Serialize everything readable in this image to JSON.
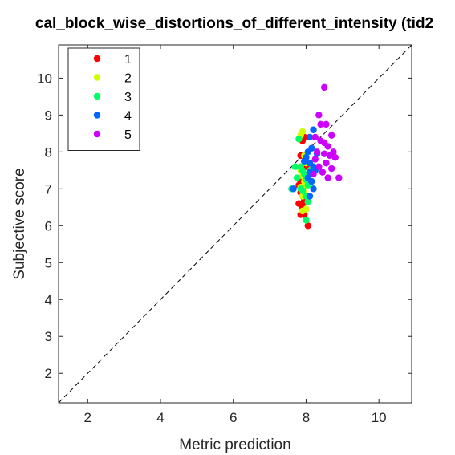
{
  "chart_data": {
    "type": "scatter",
    "title": "cal_block_wise_distortions_of_different_intensity (tid2",
    "xlabel": "Metric prediction",
    "ylabel": "Subjective score",
    "xlim": [
      1.2,
      10.9
    ],
    "ylim": [
      1.2,
      10.9
    ],
    "xticks": [
      2,
      4,
      6,
      8,
      10
    ],
    "yticks": [
      2,
      3,
      4,
      5,
      6,
      7,
      8,
      9,
      10
    ],
    "reference_line": "y = x (dashed)",
    "legend_position": "top-left",
    "series": [
      {
        "name": "1",
        "color": "#ff0000",
        "points": [
          [
            7.9,
            8.3
          ],
          [
            7.95,
            8.4
          ],
          [
            7.85,
            7.9
          ],
          [
            8.0,
            7.6
          ],
          [
            7.8,
            7.1
          ],
          [
            7.9,
            7.0
          ],
          [
            7.85,
            6.9
          ],
          [
            7.95,
            6.7
          ],
          [
            7.8,
            6.6
          ],
          [
            7.9,
            6.5
          ],
          [
            7.95,
            6.3
          ],
          [
            7.85,
            6.3
          ],
          [
            8.05,
            6.0
          ],
          [
            7.9,
            6.6
          ],
          [
            7.85,
            7.2
          ]
        ]
      },
      {
        "name": "2",
        "color": "#ccff00",
        "points": [
          [
            7.9,
            8.55
          ],
          [
            7.85,
            8.45
          ],
          [
            7.95,
            7.9
          ],
          [
            8.0,
            7.7
          ],
          [
            7.85,
            7.5
          ],
          [
            7.9,
            7.35
          ],
          [
            7.95,
            7.2
          ],
          [
            7.85,
            7.05
          ],
          [
            7.95,
            6.9
          ],
          [
            7.9,
            6.8
          ],
          [
            8.0,
            6.45
          ],
          [
            7.9,
            6.4
          ],
          [
            7.85,
            7.6
          ],
          [
            8.0,
            7.1
          ]
        ]
      },
      {
        "name": "3",
        "color": "#00ff66",
        "points": [
          [
            7.8,
            8.35
          ],
          [
            7.6,
            7.0
          ],
          [
            7.75,
            7.3
          ],
          [
            7.85,
            7.6
          ],
          [
            7.9,
            7.5
          ],
          [
            7.95,
            7.4
          ],
          [
            8.0,
            7.25
          ],
          [
            8.05,
            7.1
          ],
          [
            7.9,
            6.95
          ],
          [
            8.0,
            6.8
          ],
          [
            8.05,
            6.65
          ],
          [
            8.0,
            6.15
          ],
          [
            7.85,
            7.0
          ],
          [
            8.1,
            7.5
          ],
          [
            7.7,
            7.6
          ]
        ]
      },
      {
        "name": "4",
        "color": "#0066ff",
        "points": [
          [
            8.2,
            8.6
          ],
          [
            8.1,
            8.4
          ],
          [
            8.15,
            8.1
          ],
          [
            8.05,
            8.0
          ],
          [
            8.0,
            7.85
          ],
          [
            7.95,
            7.75
          ],
          [
            8.1,
            7.7
          ],
          [
            8.2,
            7.6
          ],
          [
            8.1,
            7.45
          ],
          [
            8.05,
            7.3
          ],
          [
            8.15,
            7.2
          ],
          [
            7.65,
            7.0
          ],
          [
            8.1,
            6.8
          ],
          [
            8.2,
            7.0
          ],
          [
            8.25,
            7.5
          ],
          [
            8.3,
            7.95
          ]
        ]
      },
      {
        "name": "5",
        "color": "#cc00ff",
        "points": [
          [
            8.5,
            9.75
          ],
          [
            8.35,
            9.0
          ],
          [
            8.55,
            8.75
          ],
          [
            8.4,
            8.75
          ],
          [
            8.25,
            8.4
          ],
          [
            8.4,
            8.3
          ],
          [
            8.5,
            8.25
          ],
          [
            8.7,
            8.45
          ],
          [
            8.6,
            8.15
          ],
          [
            8.3,
            8.0
          ],
          [
            8.5,
            7.95
          ],
          [
            8.65,
            7.9
          ],
          [
            8.8,
            7.85
          ],
          [
            8.55,
            7.7
          ],
          [
            8.7,
            7.55
          ],
          [
            8.9,
            7.3
          ],
          [
            8.45,
            7.45
          ],
          [
            8.35,
            7.6
          ],
          [
            8.25,
            7.8
          ],
          [
            8.6,
            7.3
          ],
          [
            8.2,
            7.4
          ],
          [
            8.75,
            8.0
          ]
        ]
      }
    ]
  }
}
